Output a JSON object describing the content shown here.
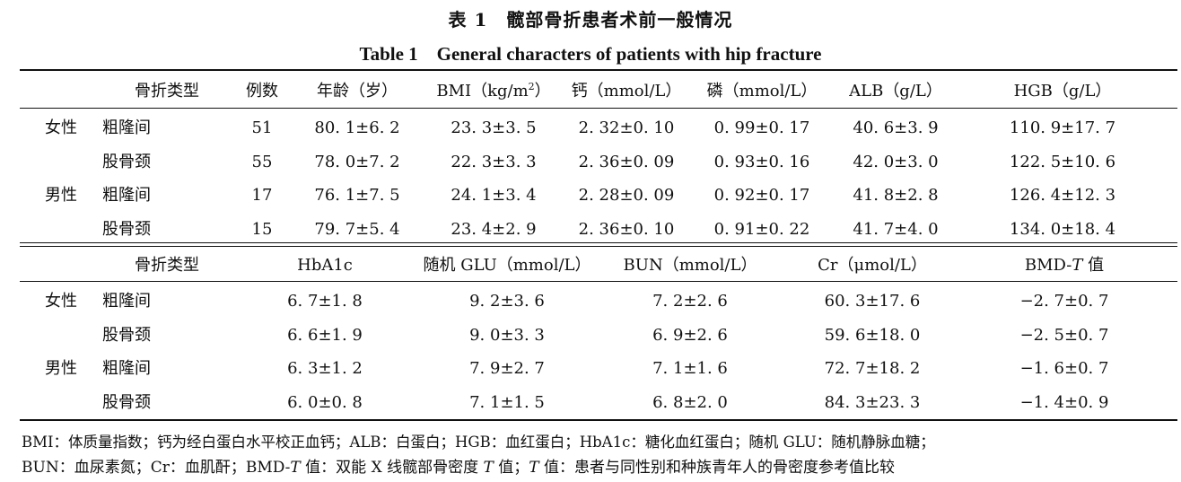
{
  "title": {
    "cn": "表 1　髋部骨折患者术前一般情况",
    "en": "Table 1　General characters of patients with hip fracture"
  },
  "table1": {
    "headers": {
      "type": "骨折类型",
      "count": "例数",
      "age": "年龄（岁）",
      "bmi_prefix": "BMI（kg/m",
      "bmi_sup": "2",
      "bmi_suffix": "）",
      "ca": "钙（mmol/L）",
      "p": "磷（mmol/L）",
      "alb": "ALB（g/L）",
      "hgb": "HGB（g/L）"
    },
    "rows": [
      {
        "sex": "女性",
        "type": "粗隆间",
        "count": "51",
        "age": "80. 1±6. 2",
        "bmi": "23. 3±3. 5",
        "ca": "2. 32±0. 10",
        "p": "0. 99±0. 17",
        "alb": "40. 6±3. 9",
        "hgb": "110. 9±17. 7"
      },
      {
        "sex": "",
        "type": "股骨颈",
        "count": "55",
        "age": "78. 0±7. 2",
        "bmi": "22. 3±3. 3",
        "ca": "2. 36±0. 09",
        "p": "0. 93±0. 16",
        "alb": "42. 0±3. 0",
        "hgb": "122. 5±10. 6"
      },
      {
        "sex": "男性",
        "type": "粗隆间",
        "count": "17",
        "age": "76. 1±7. 5",
        "bmi": "24. 1±3. 4",
        "ca": "2. 28±0. 09",
        "p": "0. 92±0. 17",
        "alb": "41. 8±2. 8",
        "hgb": "126. 4±12. 3"
      },
      {
        "sex": "",
        "type": "股骨颈",
        "count": "15",
        "age": "79. 7±5. 4",
        "bmi": "23. 4±2. 9",
        "ca": "2. 36±0. 10",
        "p": "0. 91±0. 22",
        "alb": "41. 7±4. 0",
        "hgb": "134. 0±18. 4"
      }
    ]
  },
  "table2": {
    "headers": {
      "type": "骨折类型",
      "hba1c": "HbA1c",
      "glu": "随机 GLU（mmol/L）",
      "bun": "BUN（mmol/L）",
      "cr": "Cr（μmol/L）",
      "bmd_prefix": "BMD-",
      "bmd_t": "T",
      "bmd_suffix": " 值"
    },
    "rows": [
      {
        "sex": "女性",
        "type": "粗隆间",
        "hba1c": "6. 7±1. 8",
        "glu": "9. 2±3. 6",
        "bun": "7. 2±2. 6",
        "cr": "60. 3±17. 6",
        "bmd": "−2. 7±0. 7"
      },
      {
        "sex": "",
        "type": "股骨颈",
        "hba1c": "6. 6±1. 9",
        "glu": "9. 0±3. 3",
        "bun": "6. 9±2. 6",
        "cr": "59. 6±18. 0",
        "bmd": "−2. 5±0. 7"
      },
      {
        "sex": "男性",
        "type": "粗隆间",
        "hba1c": "6. 3±1. 2",
        "glu": "7. 9±2. 7",
        "bun": "7. 1±1. 6",
        "cr": "72. 7±18. 2",
        "bmd": "−1. 6±0. 7"
      },
      {
        "sex": "",
        "type": "股骨颈",
        "hba1c": "6. 0±0. 8",
        "glu": "7. 1±1. 5",
        "bun": "6. 8±2. 0",
        "cr": "84. 3±23. 3",
        "bmd": "−1. 4±0. 9"
      }
    ]
  },
  "footnote": {
    "line1": "BMI：体质量指数；钙为经白蛋白水平校正血钙；ALB：白蛋白；HGB：血红蛋白；HbA1c：糖化血红蛋白；随机 GLU：随机静脉血糖；",
    "line2_a": "BUN：血尿素氮；Cr：血肌酐；BMD-",
    "line2_t1": "T",
    "line2_b": " 值：双能 X 线髋部骨密度 ",
    "line2_t2": "T",
    "line2_c": " 值；",
    "line2_t3": "T",
    "line2_d": " 值：患者与同性别和种族青年人的骨密度参考值比较"
  }
}
